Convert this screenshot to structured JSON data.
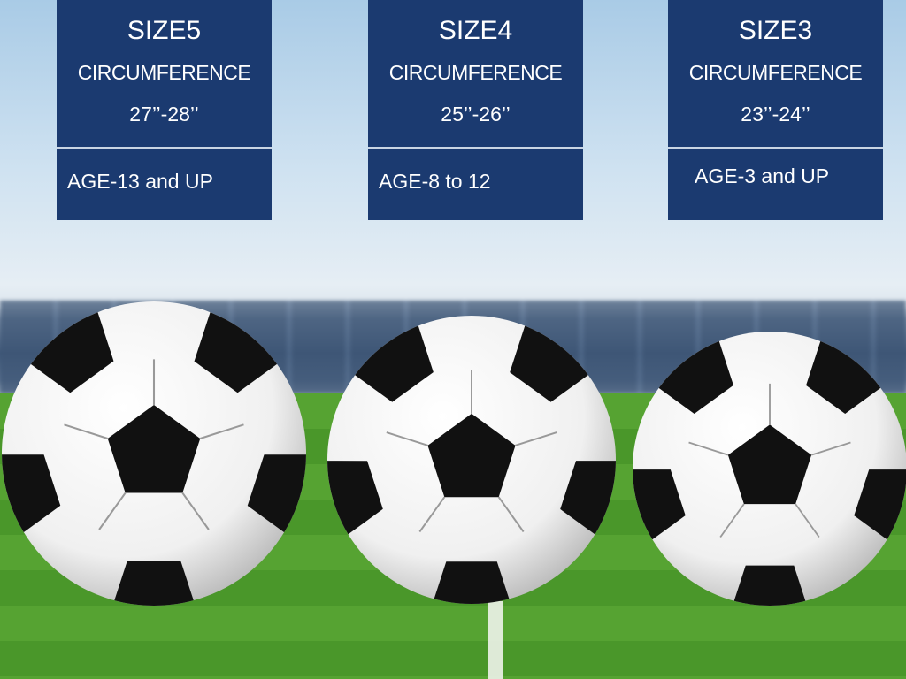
{
  "colors": {
    "card": "#1b3a70",
    "text": "#ffffff",
    "grass": "#4d9a2c"
  },
  "cards": [
    {
      "size": "SIZE5",
      "label": "CIRCUMFERENCE",
      "range": "27’’-28’’",
      "age": "AGE-13 and UP"
    },
    {
      "size": "SIZE4",
      "label": "CIRCUMFERENCE",
      "range": "25’’-26’’",
      "age": "AGE-8 to 12"
    },
    {
      "size": "SIZE3",
      "label": "CIRCUMFERENCE",
      "range": "23’’-24’’",
      "age": "AGE-3 and UP"
    }
  ],
  "balls": [
    {
      "icon": "soccer-ball-size5"
    },
    {
      "icon": "soccer-ball-size4"
    },
    {
      "icon": "soccer-ball-size3"
    }
  ]
}
